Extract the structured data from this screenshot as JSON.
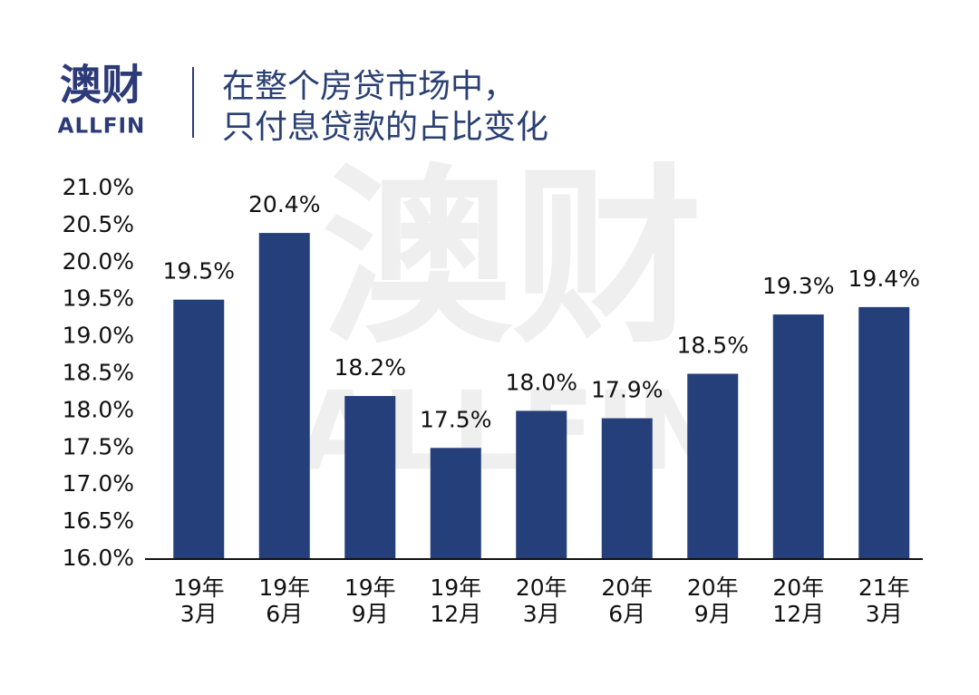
{
  "chart_data": {
    "type": "bar",
    "logo_text": "澳财",
    "logo_subtext": "ALLFIN",
    "title": [
      "在整个房贷市场中，",
      "只付息贷款的占比变化"
    ],
    "categories": [
      [
        "19年",
        "3月"
      ],
      [
        "19年",
        "6月"
      ],
      [
        "19年",
        "9月"
      ],
      [
        "19年",
        "12月"
      ],
      [
        "20年",
        "3月"
      ],
      [
        "20年",
        "6月"
      ],
      [
        "20年",
        "9月"
      ],
      [
        "20年",
        "12月"
      ],
      [
        "21年",
        "3月"
      ]
    ],
    "values": [
      19.5,
      20.4,
      18.2,
      17.5,
      18.0,
      17.9,
      18.5,
      19.3,
      19.4
    ],
    "value_labels": [
      "19.5%",
      "20.4%",
      "18.2%",
      "17.5%",
      "18.0%",
      "17.9%",
      "18.5%",
      "19.3%",
      "19.4%"
    ],
    "color": "#253f7a",
    "ylim": [
      16,
      21
    ],
    "yticks": [
      {
        "value": 16,
        "label": "16.0%"
      },
      {
        "value": 16.5,
        "label": "16.5%"
      },
      {
        "value": 17,
        "label": "17.0%"
      },
      {
        "value": 17.5,
        "label": "17.5%"
      },
      {
        "value": 18,
        "label": "18.0%"
      },
      {
        "value": 18.5,
        "label": "18.5%"
      },
      {
        "value": 19,
        "label": "19.0%"
      },
      {
        "value": 19.5,
        "label": "19.5%"
      },
      {
        "value": 20,
        "label": "20.0%"
      },
      {
        "value": 20.5,
        "label": "20.5%"
      },
      {
        "value": 21,
        "label": "21.0%"
      }
    ],
    "grid": false
  }
}
